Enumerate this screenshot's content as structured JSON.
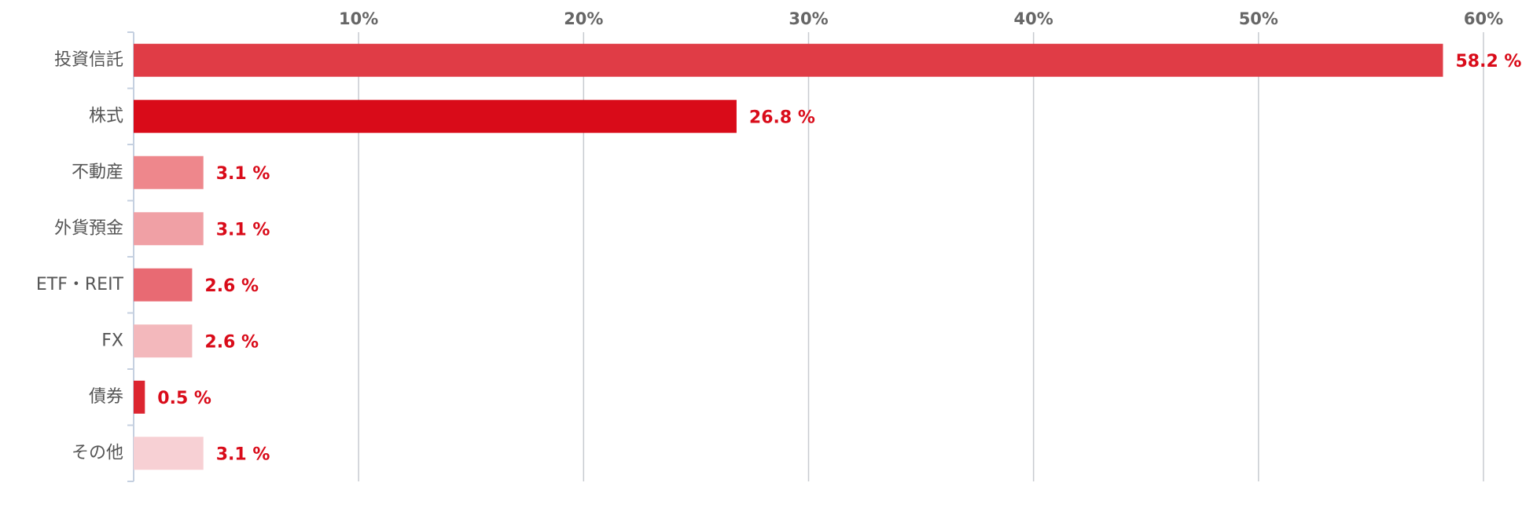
{
  "chart_data": {
    "type": "bar",
    "orientation": "horizontal",
    "categories": [
      "投資信託",
      "株式",
      "不動産",
      "外貨預金",
      "ETF・REIT",
      "FX",
      "債券",
      "その他"
    ],
    "values": [
      58.2,
      26.8,
      3.1,
      3.1,
      2.6,
      2.6,
      0.5,
      3.1
    ],
    "value_labels": [
      "58.2 %",
      "26.8 %",
      "3.1 %",
      "3.1 %",
      "2.6 %",
      "2.6 %",
      "0.5 %",
      "3.1 %"
    ],
    "colors": [
      "#e03c46",
      "#d90b19",
      "#ee878c",
      "#f0a0a5",
      "#e86a73",
      "#f3b8bc",
      "#dc2530",
      "#f7d0d4"
    ],
    "xlim": [
      0,
      60
    ],
    "xticks": [
      {
        "value": 10,
        "label": "10%"
      },
      {
        "value": 20,
        "label": "20%"
      },
      {
        "value": 30,
        "label": "30%"
      },
      {
        "value": 40,
        "label": "40%"
      },
      {
        "value": 50,
        "label": "50%"
      },
      {
        "value": 60,
        "label": "60%"
      }
    ],
    "grid": true
  }
}
